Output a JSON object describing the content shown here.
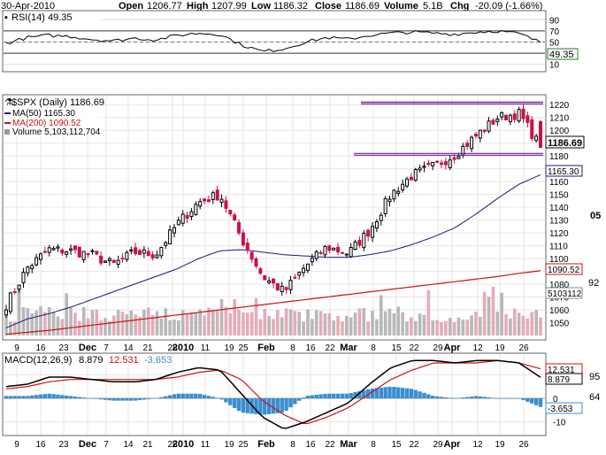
{
  "header": {
    "date": "30-Apr-2010",
    "open_label": "Open",
    "open": "1206.77",
    "high_label": "High",
    "high": "1207.99",
    "low_label": "Low",
    "low": "1186.32",
    "close_label": "Close",
    "close": "1186.69",
    "volume_label": "Volume",
    "volume": "5.1B",
    "chg_label": "Chg",
    "chg": "-20.09 (-1.66%)"
  },
  "colors": {
    "up_candle": "#000000",
    "down_candle": "#cc1144",
    "volume_up": "#b8b8b8",
    "volume_down": "#e8aab8",
    "ma50": "#1a1a7a",
    "ma200": "#cc1111",
    "resistance_line": "#7a1ea8",
    "macd_line": "#000000",
    "signal_line": "#cc1111",
    "histogram": "#3a8ed0",
    "rsi_fill": "#3a6a3a"
  },
  "rsi_panel": {
    "title": "RSI(14) 49.35",
    "value_tag": "49.35",
    "ticks": [
      "90",
      "70",
      "50",
      "30",
      "10"
    ]
  },
  "price_panel": {
    "legend": {
      "symbol": "$SPX (Daily) 1186.69",
      "ma50": "MA(50) 1165.30",
      "ma200": "MA(200) 1090.52",
      "volume": "Volume 5,103,112,704"
    },
    "ticks": [
      "1220",
      "1210",
      "1200",
      "1190",
      "1180",
      "1170",
      "1160",
      "1150",
      "1140",
      "1130",
      "1120",
      "1110",
      "1100",
      "1090",
      "1080",
      "1070",
      "1060",
      "1050"
    ],
    "tags": {
      "close": "1186.69",
      "ma50": "1165.30",
      "ma200": "1090.52",
      "volume": "5103112"
    },
    "edge_labels": {
      "a": "05",
      "b": "92"
    }
  },
  "macd_panel": {
    "title": "MACD(12,26,9)",
    "macd": "8.879",
    "signal": "12.531",
    "hist": "-3.653",
    "ticks": [
      "10",
      "0",
      "-10"
    ],
    "tags": {
      "signal": "12.531",
      "macd": "8.879",
      "hist": "-3.653"
    },
    "edge_labels": {
      "a": "95",
      "b": "64"
    }
  },
  "x_axis_labels": [
    "9",
    "16",
    "23",
    "Dec",
    "7",
    "14",
    "21",
    "28",
    "2010",
    "11",
    "19",
    "25",
    "Feb",
    "8",
    "16",
    "22",
    "Mar",
    "8",
    "15",
    "22",
    "29",
    "Apr",
    "12",
    "19",
    "26"
  ],
  "chart_data": [
    {
      "type": "candlestick",
      "title": "$SPX (Daily) 1186.69",
      "ylim": [
        1040,
        1225
      ],
      "x_categories": [
        "9",
        "16",
        "23",
        "Dec",
        "7",
        "14",
        "21",
        "28",
        "2010",
        "11",
        "19",
        "25",
        "Feb",
        "8",
        "16",
        "22",
        "Mar",
        "8",
        "15",
        "22",
        "29",
        "Apr",
        "12",
        "19",
        "26"
      ],
      "close_anchors": [
        1064,
        1093,
        1107,
        1106,
        1103,
        1095,
        1105,
        1103,
        1127,
        1144,
        1150,
        1116,
        1086,
        1074,
        1094,
        1109,
        1104,
        1122,
        1150,
        1165,
        1172,
        1181,
        1196,
        1210,
        1213,
        1187
      ],
      "last_bar": {
        "open": 1206.77,
        "high": 1207.99,
        "low": 1186.32,
        "close": 1186.69
      },
      "ma50": [
        1046,
        1053,
        1057,
        1062,
        1068,
        1074,
        1080,
        1086,
        1092,
        1100,
        1106,
        1107,
        1105,
        1103,
        1102,
        1101,
        1101,
        1103,
        1106,
        1111,
        1117,
        1124,
        1135,
        1147,
        1158,
        1165.3
      ],
      "ma200": [
        1041,
        1042.5,
        1044,
        1046,
        1048,
        1050,
        1052,
        1054,
        1056,
        1058,
        1060,
        1062,
        1064,
        1066,
        1068,
        1070,
        1072,
        1074,
        1076,
        1078,
        1080,
        1082,
        1084,
        1086,
        1088.5,
        1090.52
      ],
      "resistance_lines": [
        1222,
        1182
      ],
      "volume_last": 5103112704
    },
    {
      "type": "line",
      "title": "RSI(14) 49.35",
      "ylim": [
        0,
        100
      ],
      "levels": [
        70,
        30
      ],
      "values": [
        48,
        58,
        62,
        60,
        55,
        52,
        57,
        54,
        62,
        66,
        64,
        45,
        33,
        38,
        50,
        58,
        55,
        62,
        66,
        68,
        66,
        64,
        68,
        70,
        65,
        49.35
      ]
    },
    {
      "type": "line",
      "title": "MACD(12,26,9)",
      "ylim": [
        -15,
        18
      ],
      "macd": [
        5,
        6,
        9,
        9,
        8,
        7,
        7,
        8,
        11,
        13,
        12,
        2,
        -8,
        -13,
        -10,
        -6,
        -2,
        6,
        13,
        16,
        16,
        15,
        16,
        16,
        15,
        8.879
      ],
      "signal": [
        4,
        5,
        7,
        8,
        8,
        8,
        8,
        8,
        9,
        11,
        12,
        8,
        -1,
        -7,
        -11,
        -8,
        -4,
        2,
        8,
        12,
        15,
        15,
        15,
        16,
        15,
        12.531
      ],
      "histogram": [
        1,
        1,
        2,
        1,
        0,
        -1,
        -1,
        0,
        2,
        2,
        0,
        -6,
        -7,
        -6,
        1,
        2,
        2,
        4,
        5,
        4,
        1,
        0,
        1,
        0,
        0,
        -3.653
      ]
    }
  ]
}
